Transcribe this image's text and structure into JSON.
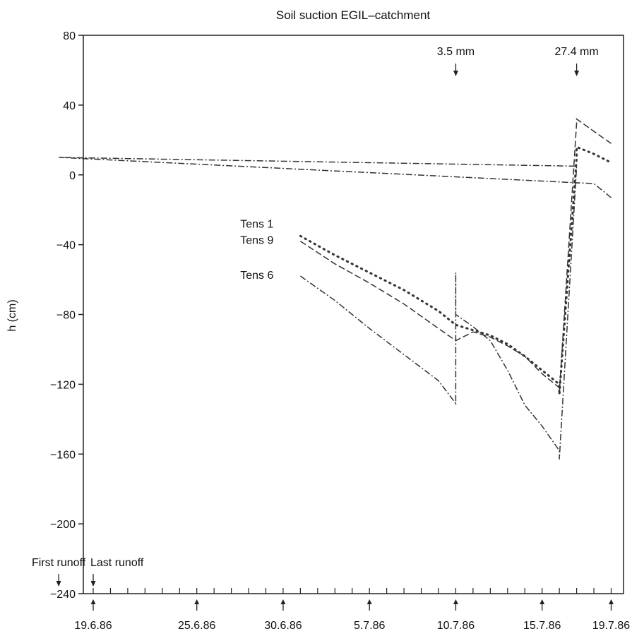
{
  "chart_data": {
    "type": "line",
    "title": "Soil suction EGIL–catchment",
    "xlabel": "",
    "ylabel": "h (cm)",
    "ylim": [
      -240,
      80
    ],
    "xlim": [
      "19.6.86",
      "21.7.86"
    ],
    "yticks": [
      80,
      40,
      0,
      -40,
      -80,
      -120,
      -160,
      -200,
      -240
    ],
    "ytick_labels": [
      "80",
      "40",
      "0",
      "−40",
      "−80",
      "−120",
      "−160",
      "−200",
      "−240"
    ],
    "xtick_labels": [
      {
        "date": "19.6.86",
        "label": "19.6.86"
      },
      {
        "date": "25.6.86",
        "label": "25.6.86"
      },
      {
        "date": "30.6.86",
        "label": "30.6.86"
      },
      {
        "date": "5.7.86",
        "label": "5.7.86"
      },
      {
        "date": "10.7.86",
        "label": "10.7.86"
      },
      {
        "date": "15.7.86",
        "label": "15.7.86"
      },
      {
        "date": "19.7.86",
        "label": "19.7.86"
      }
    ],
    "grid": false,
    "series": [
      {
        "name": "Tens 1",
        "style": "dotted",
        "color": "#333333",
        "points": [
          {
            "x": "1.7.86",
            "y": -35
          },
          {
            "x": "3.7.86",
            "y": -46
          },
          {
            "x": "5.7.86",
            "y": -56
          },
          {
            "x": "7.7.86",
            "y": -66
          },
          {
            "x": "9.7.86",
            "y": -78
          },
          {
            "x": "10.7.86",
            "y": -86
          },
          {
            "x": "11.7.86",
            "y": -89
          },
          {
            "x": "12.7.86",
            "y": -92
          },
          {
            "x": "13.7.86",
            "y": -97
          },
          {
            "x": "14.7.86",
            "y": -104
          },
          {
            "x": "15.7.86",
            "y": -112
          },
          {
            "x": "16.7.86",
            "y": -120
          },
          {
            "x": "16.9.86",
            "y": -126
          },
          {
            "x": "17.3.86",
            "y": 10
          },
          {
            "x": "17.5.86",
            "y": 16
          },
          {
            "x": "18.5.86",
            "y": 12
          },
          {
            "x": "19.5.86",
            "y": 7
          }
        ]
      },
      {
        "name": "Tens 9",
        "style": "dashed",
        "color": "#333333",
        "points": [
          {
            "x": "1.7.86",
            "y": -38
          },
          {
            "x": "3.7.86",
            "y": -51
          },
          {
            "x": "5.7.86",
            "y": -62
          },
          {
            "x": "7.7.86",
            "y": -74
          },
          {
            "x": "9.7.86",
            "y": -88
          },
          {
            "x": "10.7.86",
            "y": -95
          },
          {
            "x": "11.7.86",
            "y": -90
          },
          {
            "x": "12.7.86",
            "y": -93
          },
          {
            "x": "13.7.86",
            "y": -98
          },
          {
            "x": "14.7.86",
            "y": -104
          },
          {
            "x": "15.7.86",
            "y": -114
          },
          {
            "x": "16.7.86",
            "y": -122
          },
          {
            "x": "16.9.86",
            "y": -125
          },
          {
            "x": "17.3.86",
            "y": 30
          },
          {
            "x": "17.7.86",
            "y": 32
          },
          {
            "x": "18.5.86",
            "y": 25
          },
          {
            "x": "19.5.86",
            "y": 18
          }
        ]
      },
      {
        "name": "Tens 6",
        "style": "dash-dot",
        "color": "#333333",
        "points": [
          {
            "x": "1.7.86",
            "y": -58
          },
          {
            "x": "3.7.86",
            "y": -72
          },
          {
            "x": "5.7.86",
            "y": -88
          },
          {
            "x": "7.7.86",
            "y": -103
          },
          {
            "x": "9.7.86",
            "y": -118
          },
          {
            "x": "10.7.86",
            "y": -131
          },
          {
            "x": "10.7.86",
            "y": -56
          },
          {
            "x": "10.9.86",
            "y": -80
          },
          {
            "x": "11.5.86",
            "y": -87
          },
          {
            "x": "12.7.86",
            "y": -95
          },
          {
            "x": "13.7.86",
            "y": -112
          },
          {
            "x": "14.7.86",
            "y": -132
          },
          {
            "x": "15.7.86",
            "y": -144
          },
          {
            "x": "16.7.86",
            "y": -158
          },
          {
            "x": "16.9.86",
            "y": -163
          },
          {
            "x": "17.2.86",
            "y": 5
          },
          {
            "x": "17.6.86",
            "y": 10
          },
          {
            "x": "18.2.86",
            "y": -5
          },
          {
            "x": "19.5.86",
            "y": -13
          }
        ]
      }
    ],
    "annotations": [
      {
        "text": "3.5 mm",
        "x": "10.7.86",
        "type": "rain-arrow"
      },
      {
        "text": "27.4 mm",
        "x": "17.2.86",
        "type": "rain-arrow"
      },
      {
        "text": "Last runoff",
        "x": "19.6.86",
        "type": "runoff-arrow"
      },
      {
        "text": "First runoff",
        "x": "17.6.86",
        "type": "runoff-arrow"
      }
    ]
  }
}
